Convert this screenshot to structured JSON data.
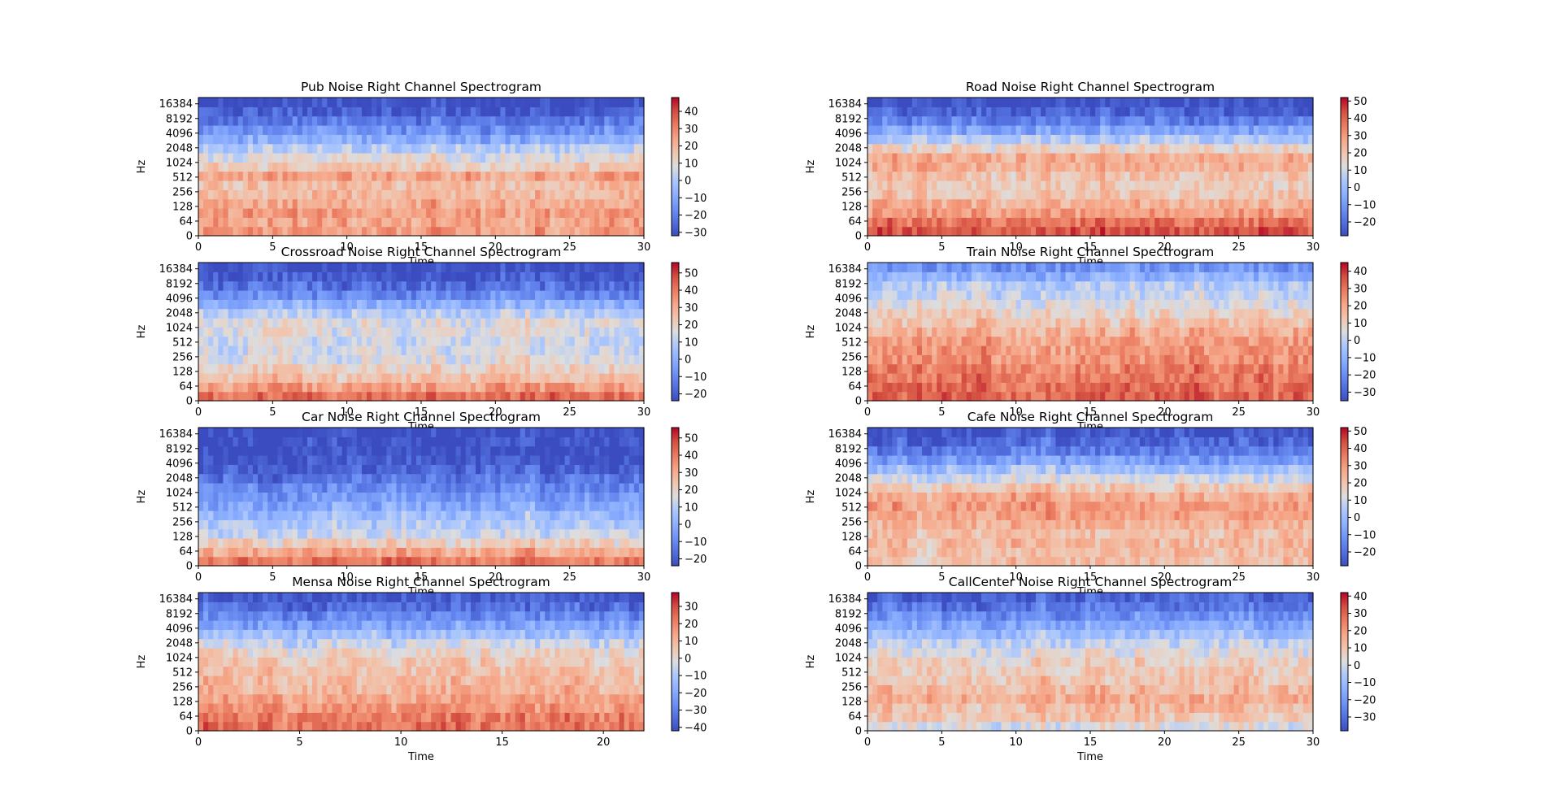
{
  "chart_data": [
    {
      "type": "heatmap",
      "title": "Pub Noise Right Channel Spectrogram",
      "xlabel": "Time",
      "ylabel": "Hz",
      "xlim": [
        0,
        30
      ],
      "x_ticks": [
        0,
        5,
        10,
        15,
        20,
        25,
        30
      ],
      "y_scale": "symlog",
      "y_ticks": [
        0,
        64,
        128,
        256,
        512,
        1024,
        2048,
        4096,
        8192,
        16384
      ],
      "colormap": "coolwarm",
      "colorbar_ticks": [
        -30,
        -20,
        -10,
        0,
        10,
        20,
        30,
        40
      ],
      "clim": [
        -32,
        48
      ],
      "energy_profile": [
        0.72,
        0.7,
        0.72,
        0.68,
        0.64,
        0.62,
        0.7,
        0.58,
        0.5,
        0.42,
        0.3,
        0.2,
        0.12,
        0.05,
        0.0
      ]
    },
    {
      "type": "heatmap",
      "title": "Road Noise Right Channel Spectrogram",
      "xlabel": "Time",
      "ylabel": "Hz",
      "xlim": [
        0,
        30
      ],
      "x_ticks": [
        0,
        5,
        10,
        15,
        20,
        25,
        30
      ],
      "y_scale": "symlog",
      "y_ticks": [
        0,
        64,
        128,
        256,
        512,
        1024,
        2048,
        4096,
        8192,
        16384
      ],
      "colormap": "coolwarm",
      "colorbar_ticks": [
        -20,
        -10,
        0,
        10,
        20,
        30,
        40,
        50
      ],
      "clim": [
        -28,
        52
      ],
      "energy_profile": [
        0.88,
        0.82,
        0.72,
        0.66,
        0.6,
        0.58,
        0.6,
        0.66,
        0.68,
        0.55,
        0.4,
        0.26,
        0.15,
        0.06,
        0.0
      ]
    },
    {
      "type": "heatmap",
      "title": "Crossroad Noise Right Channel Spectrogram",
      "xlabel": "Time",
      "ylabel": "Hz",
      "xlim": [
        0,
        30
      ],
      "x_ticks": [
        0,
        5,
        10,
        15,
        20,
        25,
        30
      ],
      "y_scale": "symlog",
      "y_ticks": [
        0,
        64,
        128,
        256,
        512,
        1024,
        2048,
        4096,
        8192,
        16384
      ],
      "colormap": "coolwarm",
      "colorbar_ticks": [
        -20,
        -10,
        0,
        10,
        20,
        30,
        40,
        50
      ],
      "clim": [
        -24,
        56
      ],
      "energy_profile": [
        0.82,
        0.72,
        0.62,
        0.56,
        0.5,
        0.47,
        0.46,
        0.5,
        0.5,
        0.42,
        0.3,
        0.18,
        0.1,
        0.04,
        0.0
      ]
    },
    {
      "type": "heatmap",
      "title": "Train Noise Right Channel Spectrogram",
      "xlabel": "Time",
      "ylabel": "Hz",
      "xlim": [
        0,
        30
      ],
      "x_ticks": [
        0,
        5,
        10,
        15,
        20,
        25,
        30
      ],
      "y_scale": "symlog",
      "y_ticks": [
        0,
        64,
        128,
        256,
        512,
        1024,
        2048,
        4096,
        8192,
        16384
      ],
      "colormap": "coolwarm",
      "colorbar_ticks": [
        -30,
        -20,
        -10,
        0,
        10,
        20,
        30,
        40
      ],
      "clim": [
        -35,
        45
      ],
      "energy_profile": [
        0.84,
        0.82,
        0.8,
        0.78,
        0.74,
        0.72,
        0.7,
        0.66,
        0.6,
        0.55,
        0.5,
        0.44,
        0.4,
        0.3,
        0.2
      ]
    },
    {
      "type": "heatmap",
      "title": "Car Noise Right Channel Spectrogram",
      "xlabel": "Time",
      "ylabel": "Hz",
      "xlim": [
        0,
        30
      ],
      "x_ticks": [
        0,
        5,
        10,
        15,
        20,
        25,
        30
      ],
      "y_scale": "symlog",
      "y_ticks": [
        0,
        64,
        128,
        256,
        512,
        1024,
        2048,
        4096,
        8192,
        16384
      ],
      "colormap": "coolwarm",
      "colorbar_ticks": [
        -20,
        -10,
        0,
        10,
        20,
        30,
        40,
        50
      ],
      "clim": [
        -24,
        56
      ],
      "energy_profile": [
        0.8,
        0.68,
        0.56,
        0.46,
        0.4,
        0.34,
        0.28,
        0.22,
        0.17,
        0.12,
        0.06,
        0.02,
        0.0,
        0.0,
        0.0
      ]
    },
    {
      "type": "heatmap",
      "title": "Cafe Noise Right Channel Spectrogram",
      "xlabel": "Time",
      "ylabel": "Hz",
      "xlim": [
        0,
        30
      ],
      "x_ticks": [
        0,
        5,
        10,
        15,
        20,
        25,
        30
      ],
      "y_scale": "symlog",
      "y_ticks": [
        0,
        64,
        128,
        256,
        512,
        1024,
        2048,
        4096,
        8192,
        16384
      ],
      "colormap": "coolwarm",
      "colorbar_ticks": [
        -20,
        -10,
        0,
        10,
        20,
        30,
        40,
        50
      ],
      "clim": [
        -28,
        52
      ],
      "energy_profile": [
        0.62,
        0.62,
        0.64,
        0.62,
        0.66,
        0.7,
        0.72,
        0.68,
        0.58,
        0.48,
        0.36,
        0.24,
        0.14,
        0.07,
        0.02
      ]
    },
    {
      "type": "heatmap",
      "title": "Mensa Noise Right Channel Spectrogram",
      "xlabel": "Time",
      "ylabel": "Hz",
      "xlim": [
        0,
        22
      ],
      "x_ticks": [
        0,
        5,
        10,
        15,
        20
      ],
      "y_scale": "symlog",
      "y_ticks": [
        0,
        64,
        128,
        256,
        512,
        1024,
        2048,
        4096,
        8192,
        16384
      ],
      "colormap": "coolwarm",
      "colorbar_ticks": [
        -40,
        -30,
        -20,
        -10,
        0,
        10,
        20,
        30
      ],
      "clim": [
        -42,
        38
      ],
      "energy_profile": [
        0.82,
        0.8,
        0.74,
        0.7,
        0.66,
        0.64,
        0.62,
        0.6,
        0.55,
        0.46,
        0.36,
        0.26,
        0.18,
        0.1,
        0.04
      ]
    },
    {
      "type": "heatmap",
      "title": "CallCenter Noise Right Channel Spectrogram",
      "xlabel": "Time",
      "ylabel": "Hz",
      "xlim": [
        0,
        30
      ],
      "x_ticks": [
        0,
        5,
        10,
        15,
        20,
        25,
        30
      ],
      "y_scale": "symlog",
      "y_ticks": [
        0,
        64,
        128,
        256,
        512,
        1024,
        2048,
        4096,
        8192,
        16384
      ],
      "colormap": "coolwarm",
      "colorbar_ticks": [
        -30,
        -20,
        -10,
        0,
        10,
        20,
        30,
        40
      ],
      "clim": [
        -38,
        42
      ],
      "energy_profile": [
        0.5,
        0.6,
        0.62,
        0.68,
        0.64,
        0.6,
        0.58,
        0.56,
        0.5,
        0.44,
        0.36,
        0.28,
        0.2,
        0.12,
        0.06
      ]
    }
  ]
}
